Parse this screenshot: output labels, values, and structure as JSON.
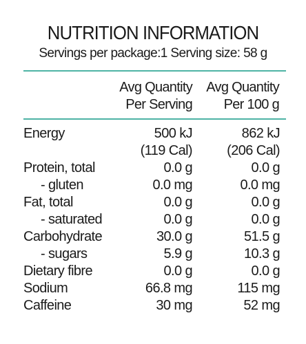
{
  "label": {
    "title": "NUTRITION INFORMATION",
    "servings_line": "Servings per package:1 Serving size: 58 g",
    "columns": {
      "per_serving": [
        "Avg Quantity",
        "Per Serving"
      ],
      "per_100g": [
        "Avg Quantity",
        "Per 100 g"
      ]
    },
    "rows": [
      {
        "name": "Energy",
        "sub": false,
        "per_serving": "500 kJ",
        "per_100g": "862 kJ"
      },
      {
        "name": "",
        "sub": false,
        "per_serving": "(119 Cal)",
        "per_100g": "(206 Cal)"
      },
      {
        "name": "Protein, total",
        "sub": false,
        "per_serving": "0.0 g",
        "per_100g": "0.0 g"
      },
      {
        "name": "- gluten",
        "sub": true,
        "per_serving": "0.0 mg",
        "per_100g": "0.0 mg"
      },
      {
        "name": "Fat, total",
        "sub": false,
        "per_serving": "0.0 g",
        "per_100g": "0.0 g"
      },
      {
        "name": "- saturated",
        "sub": true,
        "per_serving": "0.0 g",
        "per_100g": "0.0 g"
      },
      {
        "name": "Carbohydrate",
        "sub": false,
        "per_serving": "30.0 g",
        "per_100g": "51.5 g"
      },
      {
        "name": "- sugars",
        "sub": true,
        "per_serving": "5.9 g",
        "per_100g": "10.3 g"
      },
      {
        "name": "Dietary fibre",
        "sub": false,
        "per_serving": "0.0 g",
        "per_100g": "0.0 g"
      },
      {
        "name": "Sodium",
        "sub": false,
        "per_serving": "66.8 mg",
        "per_100g": "115 mg"
      },
      {
        "name": "Caffeine",
        "sub": false,
        "per_serving": "30 mg",
        "per_100g": "52 mg"
      }
    ],
    "colors": {
      "rule": "#4db3a4",
      "text": "#1a1a1a"
    }
  }
}
